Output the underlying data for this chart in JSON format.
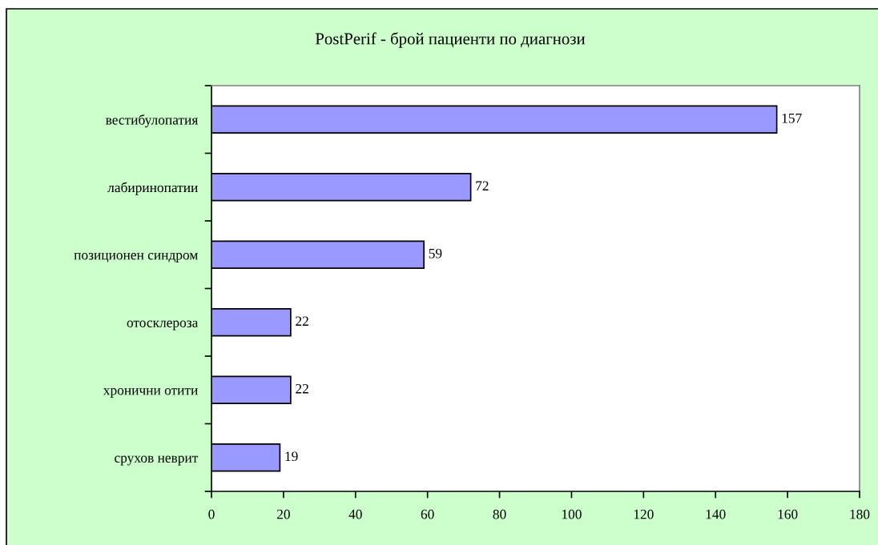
{
  "chart_data": {
    "type": "bar",
    "orientation": "horizontal",
    "title": "PostPerif - брой пациенти по диагнози",
    "categories": [
      "вестибулопатия",
      "лабиринопатии",
      "позиционен синдром",
      "отосклероза",
      "хронични отити",
      "срухов неврит"
    ],
    "values": [
      157,
      72,
      59,
      22,
      22,
      19
    ],
    "color": "#9999ff",
    "xlim": [
      0,
      180
    ],
    "xticks": [
      0,
      20,
      40,
      60,
      80,
      100,
      120,
      140,
      160,
      180
    ],
    "grid": false,
    "legend": false,
    "data_labels": true
  }
}
